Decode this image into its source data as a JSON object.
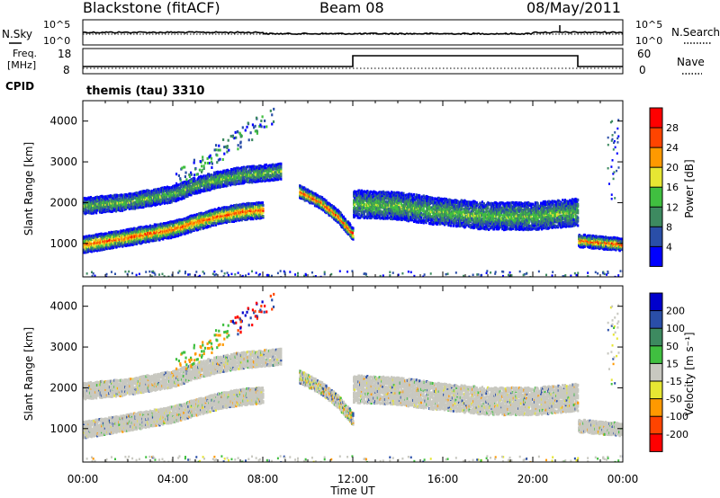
{
  "header": {
    "title": "Blackstone (fitACF)",
    "beam": "Beam 08",
    "date": "08/May/2011"
  },
  "noise_panel": {
    "left_label": "N.Sky",
    "left_ticks": [
      "10^5",
      "10^0"
    ],
    "right_ticks": [
      "10^5",
      "10^0"
    ],
    "right_label": "N.Search"
  },
  "freq_panel": {
    "left_label_line1": "Freq.",
    "left_label_line2": "[MHz]",
    "left_ticks": [
      "18",
      "8"
    ],
    "right_ticks": [
      "60",
      "0"
    ],
    "right_label": "Nave",
    "cpid_label": "CPID",
    "cpid_text": "themis (tau) 3310"
  },
  "chart_data": [
    {
      "type": "heatmap",
      "title": "",
      "xlabel": "",
      "ylabel": "Slant Range [km]",
      "xlim": [
        "00:00",
        "00:00"
      ],
      "ylim": [
        180,
        4500
      ],
      "ytick_labels": [
        "1000",
        "2000",
        "3000",
        "4000"
      ],
      "colorbar_label": "Power [dB]",
      "colorbar_ticks": [
        "4",
        "8",
        "12",
        "16",
        "20",
        "24",
        "28"
      ],
      "colors": [
        "#0000ff",
        "#2a4ea8",
        "#3d8a60",
        "#40bf40",
        "#e6e633",
        "#ff9900",
        "#ff4400",
        "#ff0000"
      ],
      "traces": [
        {
          "name": "",
          "hours": [
            0,
            2,
            4,
            5,
            6,
            7,
            8
          ],
          "range": [
            1000,
            1180,
            1380,
            1550,
            1700,
            1800,
            1850
          ]
        },
        {
          "name": "",
          "hours": [
            0,
            2,
            4,
            5,
            6,
            7,
            8.8
          ],
          "range": [
            1950,
            2050,
            2250,
            2450,
            2600,
            2700,
            2800
          ]
        },
        {
          "name": "",
          "hours": [
            9.6,
            10.5,
            11.3,
            12
          ],
          "range": [
            2300,
            2050,
            1700,
            1250
          ]
        },
        {
          "name": "",
          "hours": [
            12,
            14,
            16,
            18,
            20,
            22
          ],
          "range": [
            2000,
            1950,
            1800,
            1700,
            1700,
            1800
          ]
        },
        {
          "name": "",
          "hours": [
            22,
            24
          ],
          "range": [
            1100,
            1000
          ]
        }
      ]
    },
    {
      "type": "heatmap",
      "title": "",
      "xlabel": "Time UT",
      "ylabel": "Slant Range [km]",
      "xlim": [
        "00:00",
        "00:00"
      ],
      "ylim": [
        180,
        4500
      ],
      "xtick_labels": [
        "00:00",
        "04:00",
        "08:00",
        "12:00",
        "16:00",
        "20:00",
        "00:00"
      ],
      "ytick_labels": [
        "1000",
        "2000",
        "3000",
        "4000"
      ],
      "colorbar_label": "Velocity [m s⁻¹]",
      "colorbar_ticks": [
        "200",
        "100",
        "50",
        "15",
        "-15",
        "-50",
        "-100",
        "-200"
      ],
      "colors": [
        "#0000cc",
        "#2a4ea8",
        "#3d8a60",
        "#40bf40",
        "#c8c8c0",
        "#e6e633",
        "#ff9900",
        "#ff4400",
        "#ff0000"
      ]
    }
  ]
}
